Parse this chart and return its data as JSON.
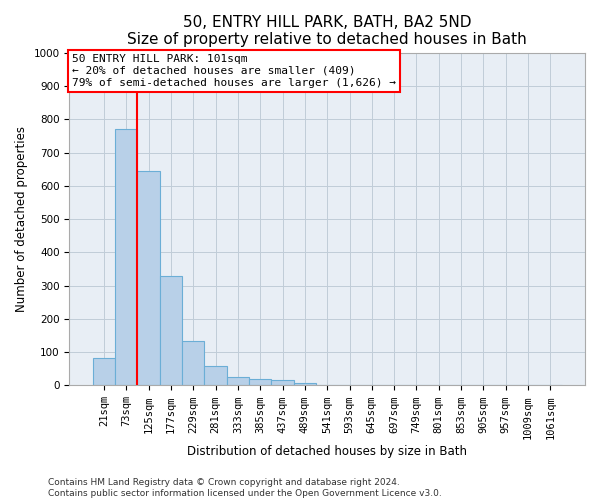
{
  "title": "50, ENTRY HILL PARK, BATH, BA2 5ND",
  "subtitle": "Size of property relative to detached houses in Bath",
  "xlabel": "Distribution of detached houses by size in Bath",
  "ylabel": "Number of detached properties",
  "annotation_text": "50 ENTRY HILL PARK: 101sqm\n← 20% of detached houses are smaller (409)\n79% of semi-detached houses are larger (1,626) →",
  "footer_line1": "Contains HM Land Registry data © Crown copyright and database right 2024.",
  "footer_line2": "Contains public sector information licensed under the Open Government Licence v3.0.",
  "bar_labels": [
    "21sqm",
    "73sqm",
    "125sqm",
    "177sqm",
    "229sqm",
    "281sqm",
    "333sqm",
    "385sqm",
    "437sqm",
    "489sqm",
    "541sqm",
    "593sqm",
    "645sqm",
    "697sqm",
    "749sqm",
    "801sqm",
    "853sqm",
    "905sqm",
    "957sqm",
    "1009sqm",
    "1061sqm"
  ],
  "bar_values": [
    83,
    770,
    645,
    330,
    135,
    60,
    25,
    20,
    15,
    8,
    0,
    0,
    0,
    0,
    0,
    0,
    0,
    0,
    0,
    0,
    0
  ],
  "bar_color": "#b8d0e8",
  "bar_edge_color": "#6baed6",
  "redline_x": 1.5,
  "ylim_max": 1000,
  "yticks": [
    0,
    100,
    200,
    300,
    400,
    500,
    600,
    700,
    800,
    900,
    1000
  ],
  "bg_color": "#e8eef5",
  "title_fontsize": 11,
  "subtitle_fontsize": 9.5,
  "axis_label_fontsize": 8.5,
  "tick_fontsize": 7.5,
  "annotation_fontsize": 8,
  "footer_fontsize": 6.5
}
